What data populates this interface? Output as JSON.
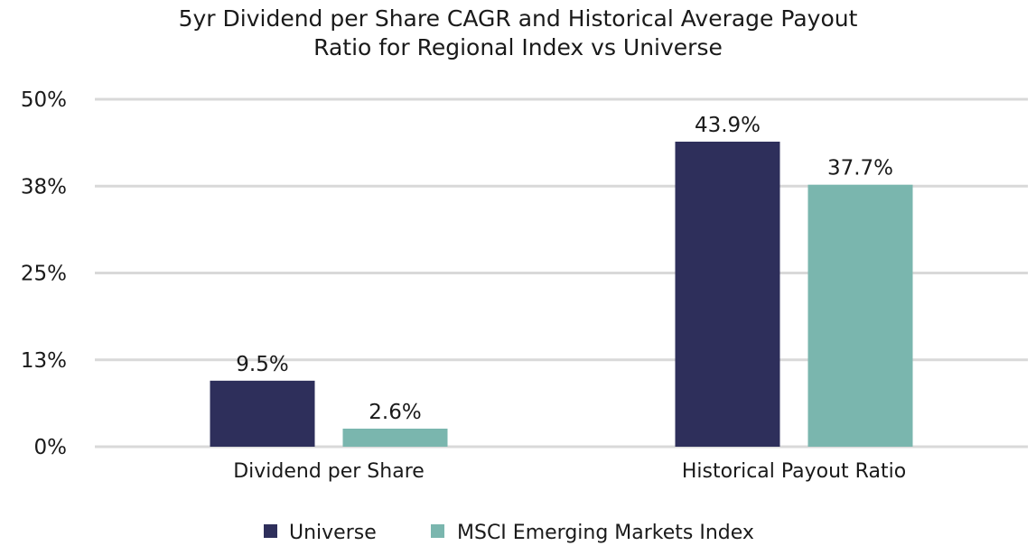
{
  "chart_data": {
    "type": "bar",
    "title": "5yr Dividend per Share CAGR and Historical Average Payout Ratio for Regional Index vs Universe",
    "title_lines": [
      "5yr Dividend per Share CAGR and Historical Average Payout",
      "Ratio for Regional Index vs Universe"
    ],
    "categories": [
      "Dividend per Share",
      "Historical Payout Ratio"
    ],
    "series": [
      {
        "name": "Universe",
        "values": [
          9.5,
          43.9
        ],
        "labels": [
          "9.5%",
          "43.9%"
        ],
        "color": "#2e2f5b"
      },
      {
        "name": "MSCI Emerging Markets Index",
        "values": [
          2.6,
          37.7
        ],
        "labels": [
          "2.6%",
          "37.7%"
        ],
        "color": "#7ab6ae"
      }
    ],
    "y_ticks": [
      {
        "value": 0,
        "label": "0%"
      },
      {
        "value": 12.5,
        "label": "13%"
      },
      {
        "value": 25,
        "label": "25%"
      },
      {
        "value": 37.5,
        "label": "38%"
      },
      {
        "value": 50,
        "label": "50%"
      }
    ],
    "ylim": [
      0,
      50
    ],
    "grid": true,
    "gridline_color": "#d9d9d9",
    "legend_position": "bottom"
  }
}
